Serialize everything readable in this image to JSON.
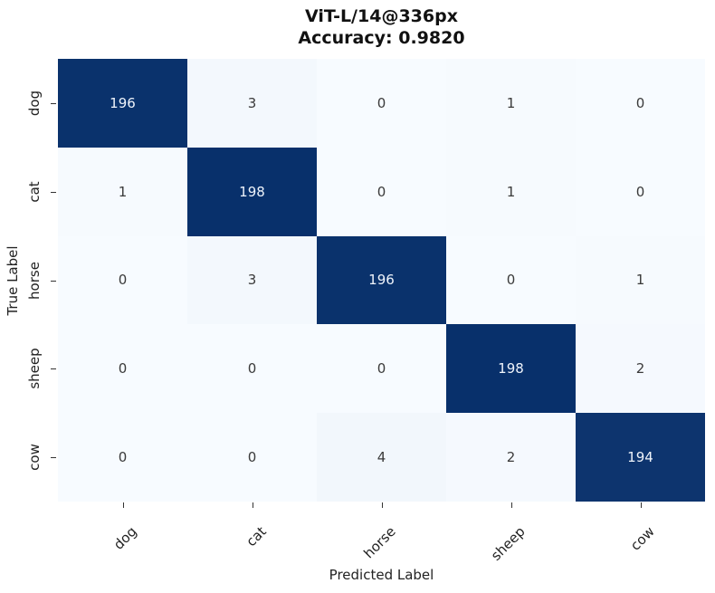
{
  "chart_data": {
    "type": "heatmap",
    "title": "ViT-L/14@336px",
    "subtitle": "Accuracy: 0.9820",
    "xlabel": "Predicted Label",
    "ylabel": "True Label",
    "x_categories": [
      "dog",
      "cat",
      "horse",
      "sheep",
      "cow"
    ],
    "y_categories": [
      "dog",
      "cat",
      "horse",
      "sheep",
      "cow"
    ],
    "matrix": [
      [
        196,
        3,
        0,
        1,
        0
      ],
      [
        1,
        198,
        0,
        1,
        0
      ],
      [
        0,
        3,
        196,
        0,
        1
      ],
      [
        0,
        0,
        0,
        198,
        2
      ],
      [
        0,
        0,
        4,
        2,
        194
      ]
    ],
    "colormap": "Blues",
    "vmin": 0,
    "vmax": 198,
    "colorbar": false,
    "colors": {
      "low": "#f7fbff",
      "high": "#08306b"
    }
  }
}
